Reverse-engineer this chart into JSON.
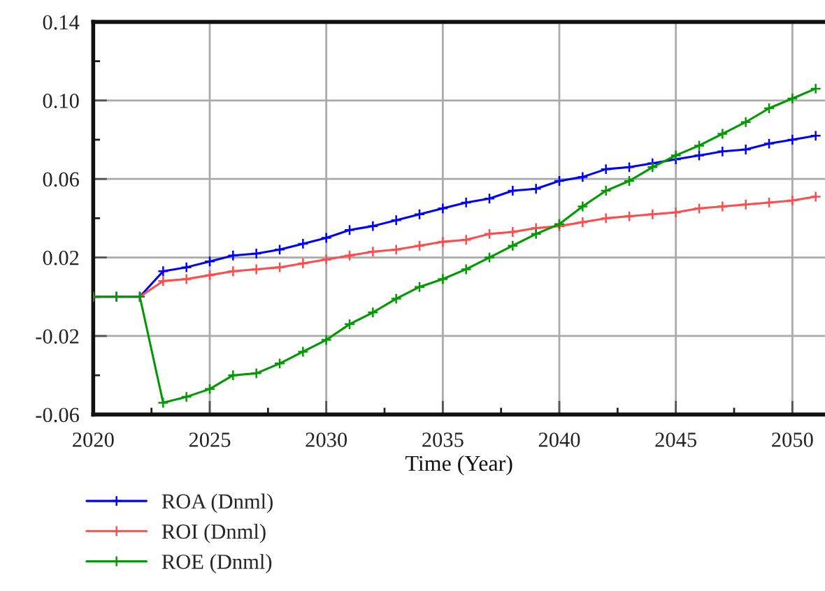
{
  "chart_data": {
    "type": "line",
    "xlabel": "Time (Year)",
    "x": [
      2020,
      2021,
      2022,
      2023,
      2024,
      2025,
      2026,
      2027,
      2028,
      2029,
      2030,
      2031,
      2032,
      2033,
      2034,
      2035,
      2036,
      2037,
      2038,
      2039,
      2040,
      2041,
      2042,
      2043,
      2044,
      2045,
      2046,
      2047,
      2048,
      2049,
      2050,
      2051
    ],
    "series": [
      {
        "name": "ROA (Dnml)",
        "color": "#0000ff",
        "values": [
          0,
          0,
          0,
          0.013,
          0.015,
          0.018,
          0.021,
          0.022,
          0.024,
          0.027,
          0.03,
          0.034,
          0.036,
          0.039,
          0.042,
          0.045,
          0.048,
          0.05,
          0.054,
          0.055,
          0.059,
          0.061,
          0.065,
          0.066,
          0.068,
          0.07,
          0.072,
          0.074,
          0.075,
          0.078,
          0.08,
          0.082
        ]
      },
      {
        "name": "ROI (Dnml)",
        "color": "#ff4c4c",
        "values": [
          0,
          0,
          0,
          0.008,
          0.009,
          0.011,
          0.013,
          0.014,
          0.015,
          0.017,
          0.019,
          0.021,
          0.023,
          0.024,
          0.026,
          0.028,
          0.029,
          0.032,
          0.033,
          0.035,
          0.036,
          0.038,
          0.04,
          0.041,
          0.042,
          0.043,
          0.045,
          0.046,
          0.047,
          0.048,
          0.049,
          0.051
        ]
      },
      {
        "name": "ROE (Dnml)",
        "color": "#009900",
        "values": [
          0,
          0,
          0,
          -0.054,
          -0.051,
          -0.047,
          -0.04,
          -0.039,
          -0.034,
          -0.028,
          -0.022,
          -0.014,
          -0.008,
          -0.001,
          0.005,
          0.009,
          0.014,
          0.02,
          0.026,
          0.032,
          0.037,
          0.046,
          0.054,
          0.059,
          0.066,
          0.072,
          0.077,
          0.083,
          0.089,
          0.096,
          0.101,
          0.106
        ]
      }
    ],
    "xlim": [
      2020,
      2051.4
    ],
    "xticks": [
      2020,
      {
        "value": 2022.5,
        "label": null
      },
      2025,
      {
        "value": 2027.5,
        "label": null
      },
      2030,
      {
        "value": 2032.5,
        "label": null
      },
      2035,
      {
        "value": 2037.5,
        "label": null
      },
      2040,
      {
        "value": 2042.5,
        "label": null
      },
      2045,
      {
        "value": 2047.5,
        "label": null
      },
      2050
    ],
    "ylim": [
      -0.06,
      0.14
    ],
    "yticks": [
      -0.06,
      {
        "value": -0.04,
        "label": null
      },
      -0.02,
      {
        "value": 0.0,
        "label": null
      },
      0.02,
      {
        "value": 0.04,
        "label": null
      },
      0.06,
      {
        "value": 0.08,
        "label": null
      },
      {
        "value": 0.1,
        "label": "0.10"
      },
      {
        "value": 0.12,
        "label": null
      },
      0.14
    ],
    "grid": true,
    "legend": "bottom",
    "marker": "cross",
    "line_style": "solid"
  }
}
